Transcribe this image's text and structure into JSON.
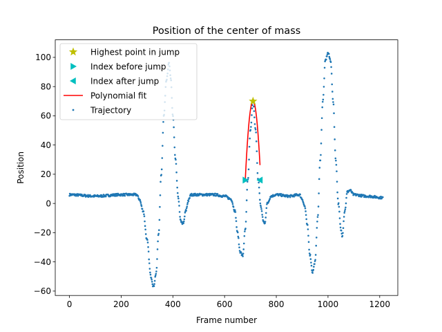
{
  "chart_data": {
    "type": "scatter",
    "title": "Position of the center of mass",
    "xlabel": "Frame number",
    "ylabel": "Position",
    "xlim": [
      -55,
      1270
    ],
    "ylim": [
      -63,
      112
    ],
    "xticks": [
      0,
      200,
      400,
      600,
      800,
      1000,
      1200
    ],
    "yticks": [
      -60,
      -40,
      -20,
      0,
      20,
      40,
      60,
      80,
      100
    ],
    "grid": false,
    "legend_position": "top-left",
    "legend": [
      {
        "label": "Highest point in jump",
        "marker": "star",
        "color": "#bfbf00"
      },
      {
        "label": "Index before jump",
        "marker": "triangle-right",
        "color": "#00bfbf"
      },
      {
        "label": "Index after jump",
        "marker": "triangle-left",
        "color": "#00bfbf"
      },
      {
        "label": "Polynomial fit",
        "marker": "line",
        "color": "#ff0000"
      },
      {
        "label": "Trajectory",
        "marker": "dot",
        "color": "#1f77b4"
      }
    ],
    "trajectory_keypoints": [
      [
        0,
        6
      ],
      [
        100,
        5
      ],
      [
        200,
        6
      ],
      [
        260,
        6
      ],
      [
        270,
        3
      ],
      [
        285,
        -5
      ],
      [
        300,
        -25
      ],
      [
        315,
        -50
      ],
      [
        325,
        -57
      ],
      [
        335,
        -48
      ],
      [
        345,
        -20
      ],
      [
        355,
        20
      ],
      [
        365,
        60
      ],
      [
        375,
        85
      ],
      [
        385,
        96
      ],
      [
        392,
        85
      ],
      [
        400,
        60
      ],
      [
        410,
        30
      ],
      [
        420,
        5
      ],
      [
        430,
        -12
      ],
      [
        440,
        -14
      ],
      [
        450,
        -5
      ],
      [
        460,
        2
      ],
      [
        470,
        6
      ],
      [
        520,
        6
      ],
      [
        560,
        6
      ],
      [
        600,
        5
      ],
      [
        625,
        3
      ],
      [
        640,
        -5
      ],
      [
        650,
        -20
      ],
      [
        660,
        -33
      ],
      [
        670,
        -36
      ],
      [
        680,
        -18
      ],
      [
        690,
        16
      ],
      [
        700,
        50
      ],
      [
        710,
        70
      ],
      [
        720,
        50
      ],
      [
        730,
        16
      ],
      [
        740,
        -2
      ],
      [
        750,
        -12
      ],
      [
        755,
        -14
      ],
      [
        765,
        0
      ],
      [
        780,
        5
      ],
      [
        800,
        6
      ],
      [
        850,
        5
      ],
      [
        890,
        6
      ],
      [
        900,
        3
      ],
      [
        910,
        -2
      ],
      [
        920,
        -15
      ],
      [
        930,
        -35
      ],
      [
        940,
        -47
      ],
      [
        950,
        -40
      ],
      [
        960,
        -10
      ],
      [
        970,
        30
      ],
      [
        980,
        70
      ],
      [
        990,
        98
      ],
      [
        1000,
        103
      ],
      [
        1010,
        98
      ],
      [
        1020,
        70
      ],
      [
        1030,
        30
      ],
      [
        1040,
        0
      ],
      [
        1050,
        -18
      ],
      [
        1055,
        -22
      ],
      [
        1065,
        -5
      ],
      [
        1075,
        8
      ],
      [
        1085,
        9
      ],
      [
        1100,
        6
      ],
      [
        1150,
        5
      ],
      [
        1212,
        4
      ]
    ],
    "trajectory_range": [
      0,
      1212
    ],
    "highest_point": {
      "x": 710,
      "y": 70
    },
    "index_before_jump": {
      "x": 680,
      "y": 16
    },
    "index_after_jump": {
      "x": 737,
      "y": 16
    },
    "polynomial_fit": {
      "x_range": [
        680,
        737
      ],
      "peak": [
        710,
        70
      ],
      "end_y": 16
    }
  }
}
